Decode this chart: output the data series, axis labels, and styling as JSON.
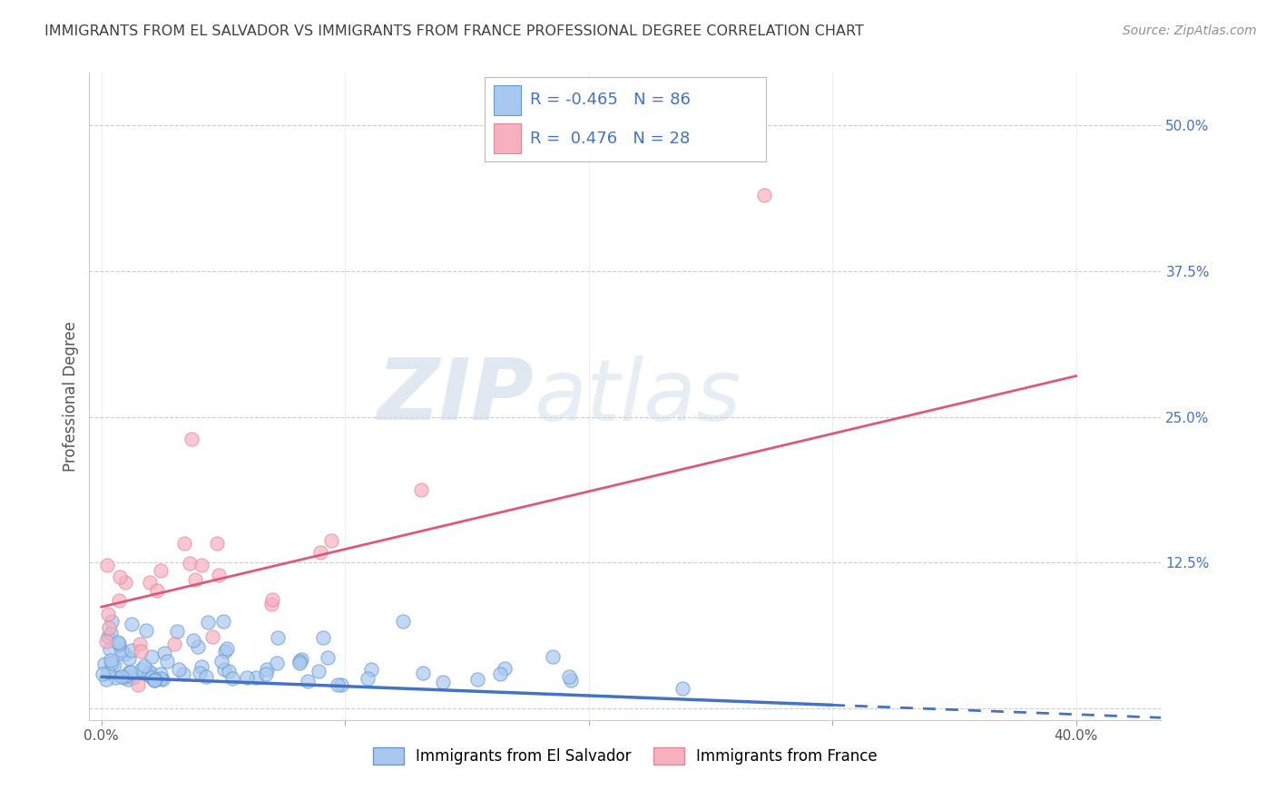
{
  "title": "IMMIGRANTS FROM EL SALVADOR VS IMMIGRANTS FROM FRANCE PROFESSIONAL DEGREE CORRELATION CHART",
  "source": "Source: ZipAtlas.com",
  "ylabel": "Professional Degree",
  "watermark_zip": "ZIP",
  "watermark_atlas": "atlas",
  "legend_r_blue": "-0.465",
  "legend_n_blue": "86",
  "legend_r_pink": "0.476",
  "legend_n_pink": "28",
  "legend_label_blue": "Immigrants from El Salvador",
  "legend_label_pink": "Immigrants from France",
  "xlim": [
    -0.005,
    0.435
  ],
  "ylim": [
    -0.01,
    0.545
  ],
  "blue_scatter_color": "#a8c8f0",
  "blue_edge_color": "#6699cc",
  "blue_line_color": "#4472c4",
  "pink_scatter_color": "#f8b0c0",
  "pink_edge_color": "#e08898",
  "pink_line_color": "#e05878",
  "title_color": "#404040",
  "source_color": "#909090",
  "legend_text_color": "#4472c4",
  "grid_color": "#cccccc",
  "background_color": "#ffffff",
  "blue_trend_x0": 0.0,
  "blue_trend_y0": 0.027,
  "blue_trend_x1": 0.435,
  "blue_trend_y1": -0.008,
  "pink_trend_x0": 0.0,
  "pink_trend_y0": 0.087,
  "pink_trend_x1": 0.4,
  "pink_trend_y1": 0.285
}
